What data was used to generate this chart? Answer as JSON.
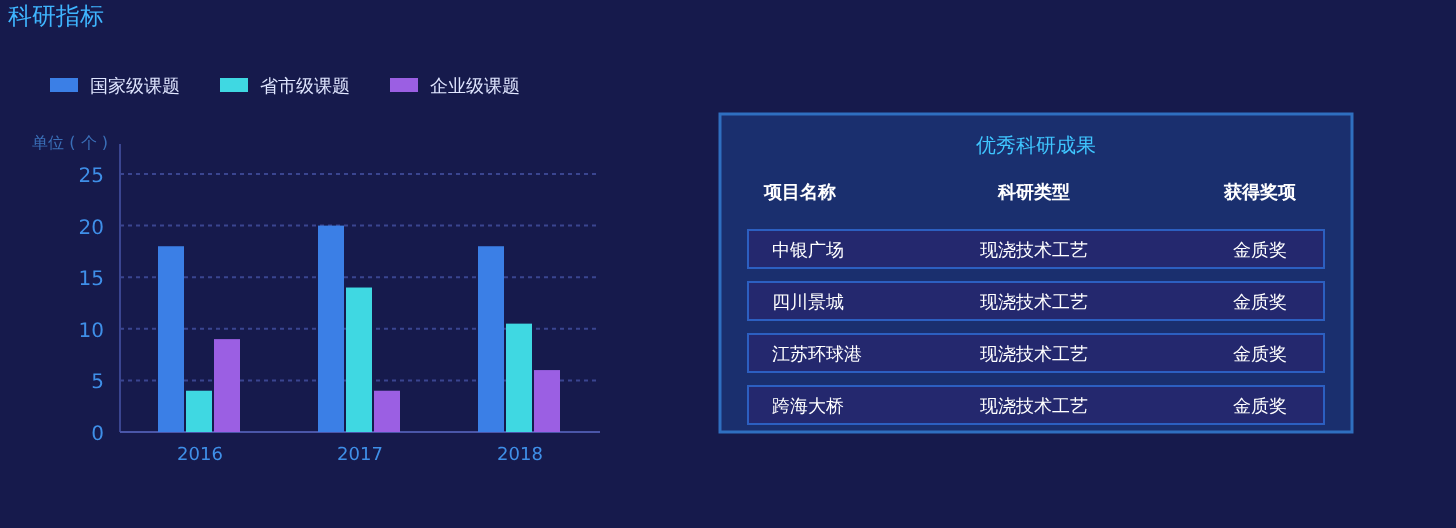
{
  "chart_data": [
    {
      "type": "bar",
      "title": "科研指标",
      "ylabel": "单位 ( 个 )",
      "categories": [
        "2016",
        "2017",
        "2018"
      ],
      "series": [
        {
          "name": "国家级课题",
          "color": "#3b7fe6",
          "values": [
            18,
            20,
            18
          ]
        },
        {
          "name": "省市级课题",
          "color": "#3fd8e2",
          "values": [
            4,
            14,
            10.5
          ]
        },
        {
          "name": "企业级课题",
          "color": "#9b5fe3",
          "values": [
            9,
            4,
            6
          ]
        }
      ],
      "ylim": [
        0,
        25
      ],
      "yticks": [
        0,
        5,
        10,
        15,
        20,
        25
      ],
      "grid": "y",
      "legend": "top left"
    },
    {
      "type": "other",
      "title": "优秀科研成果",
      "annotations": [
        "项目名称",
        "科研类型",
        "获得奖项",
        "中银广场",
        "现浇技术工艺",
        "金质奖",
        "四川景城",
        "现浇技术工艺",
        "金质奖",
        "江苏环球港",
        "现浇技术工艺",
        "金质奖",
        "跨海大桥",
        "现浇技术工艺",
        "金质奖"
      ]
    }
  ]
}
